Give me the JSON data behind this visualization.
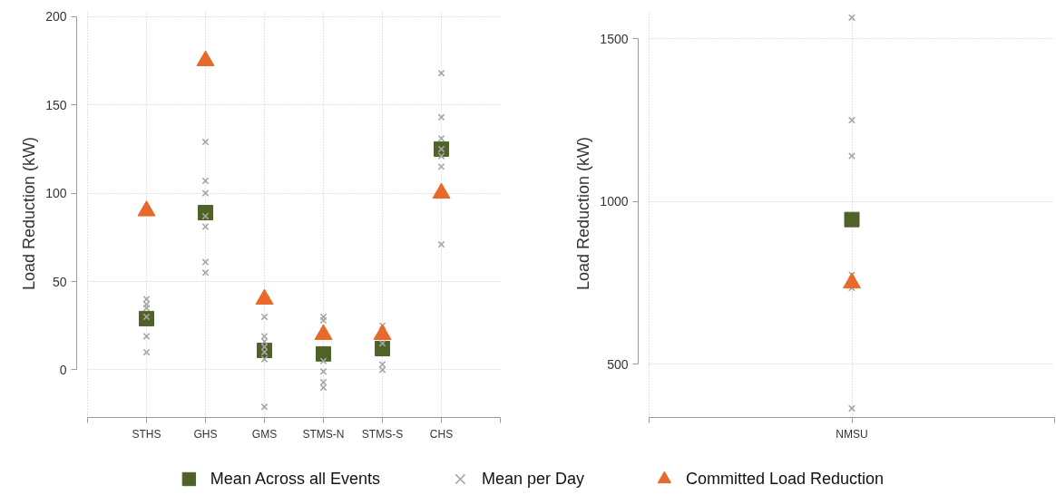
{
  "chart_data": [
    {
      "type": "scatter",
      "ylabel": "Load Reduction (kW)",
      "categories": [
        "STHS",
        "GHS",
        "GMS",
        "STMS-N",
        "STMS-S",
        "CHS"
      ],
      "ylim": [
        -27,
        204
      ],
      "yticks": [
        0,
        50,
        100,
        150,
        200
      ],
      "grid": true,
      "legend": "bottom",
      "series": [
        {
          "name": "Mean Across all Events",
          "color": "#4f6228",
          "marker": "square",
          "values": [
            29,
            89,
            11,
            9,
            12,
            125
          ]
        },
        {
          "name": "Mean per Day",
          "color": "#a6a6a6",
          "marker": "cross",
          "x": [
            "STHS",
            "STHS",
            "STHS",
            "STHS",
            "STHS",
            "STHS",
            "GHS",
            "GHS",
            "GHS",
            "GHS",
            "GHS",
            "GHS",
            "GHS",
            "GMS",
            "GMS",
            "GMS",
            "GMS",
            "GMS",
            "GMS",
            "GMS",
            "STMS-N",
            "STMS-N",
            "STMS-N",
            "STMS-N",
            "STMS-N",
            "STMS-N",
            "STMS-S",
            "STMS-S",
            "STMS-S",
            "STMS-S",
            "CHS",
            "CHS",
            "CHS",
            "CHS",
            "CHS",
            "CHS",
            "CHS"
          ],
          "values": [
            40,
            37,
            35,
            30,
            19,
            10,
            129,
            107,
            100,
            87,
            81,
            61,
            55,
            30,
            19,
            16,
            13,
            10,
            6,
            -21,
            30,
            28,
            5,
            -1,
            -7,
            -10,
            25,
            15,
            3,
            0,
            168,
            143,
            131,
            125,
            121,
            115,
            71
          ]
        },
        {
          "name": "Committed Load Reduction",
          "color": "#e8692a",
          "marker": "triangle",
          "values": [
            90,
            175,
            40,
            20,
            20,
            100
          ]
        }
      ]
    },
    {
      "type": "scatter",
      "ylabel": "Load Reduction (kW)",
      "categories": [
        "NMSU"
      ],
      "ylim": [
        337,
        1590
      ],
      "yticks": [
        500,
        1000,
        1500
      ],
      "grid": true,
      "series": [
        {
          "color": "#4f6228",
          "marker": "square",
          "values": [
            945
          ]
        },
        {
          "color": "#a6a6a6",
          "marker": "cross",
          "x": [
            "NMSU",
            "NMSU",
            "NMSU",
            "NMSU",
            "NMSU",
            "NMSU"
          ],
          "values": [
            1565,
            1250,
            1140,
            775,
            735,
            365
          ]
        },
        {
          "color": "#e8692a",
          "marker": "triangle",
          "values": [
            750
          ]
        }
      ]
    }
  ]
}
